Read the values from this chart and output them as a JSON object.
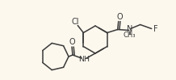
{
  "bg_color": "#fdf8ee",
  "line_color": "#3a3a3a",
  "lw": 1.1,
  "fs": 6.5,
  "fig_width": 2.18,
  "fig_height": 0.99,
  "dpi": 100,
  "xlim": [
    0,
    218
  ],
  "ylim": [
    0,
    99
  ]
}
